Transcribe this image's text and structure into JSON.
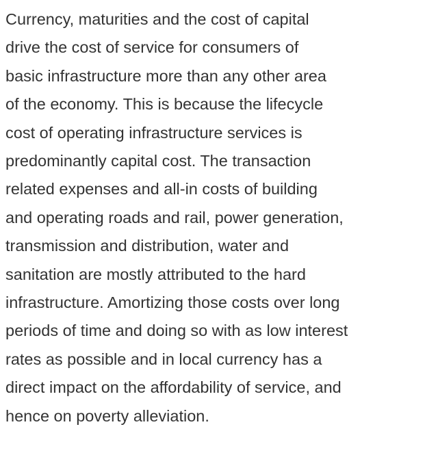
{
  "paragraph": {
    "lines": [
      "Currency, maturities and the cost of capital",
      "drive the cost of service for consumers of",
      "basic infrastructure more than any other area",
      "of the economy. This is because the lifecycle",
      "cost of operating infrastructure services is",
      "predominantly capital cost. The transaction",
      "related expenses and all-in costs of building",
      "and operating roads and rail, power generation,",
      "transmission and distribution, water and",
      "sanitation are mostly attributed to the hard",
      "infrastructure. Amortizing those costs over long",
      "periods of time and doing so with as low interest",
      "rates as possible and in local currency has a",
      "direct impact on the affordability of service, and",
      "hence on poverty alleviation."
    ]
  }
}
